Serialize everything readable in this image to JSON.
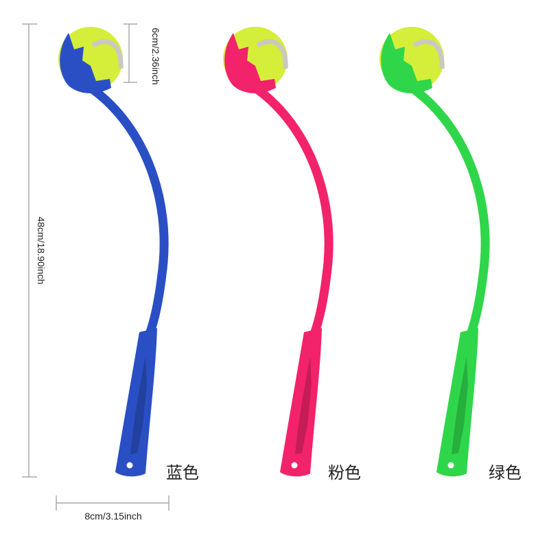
{
  "dimensions": {
    "ball_diameter": "6cm/2.36inch",
    "length": "48cm/18.90inch",
    "width": "8cm/3.15inch"
  },
  "products": [
    {
      "label": "蓝色"
    },
    {
      "label": "粉色"
    },
    {
      "label": "绿色"
    }
  ]
}
